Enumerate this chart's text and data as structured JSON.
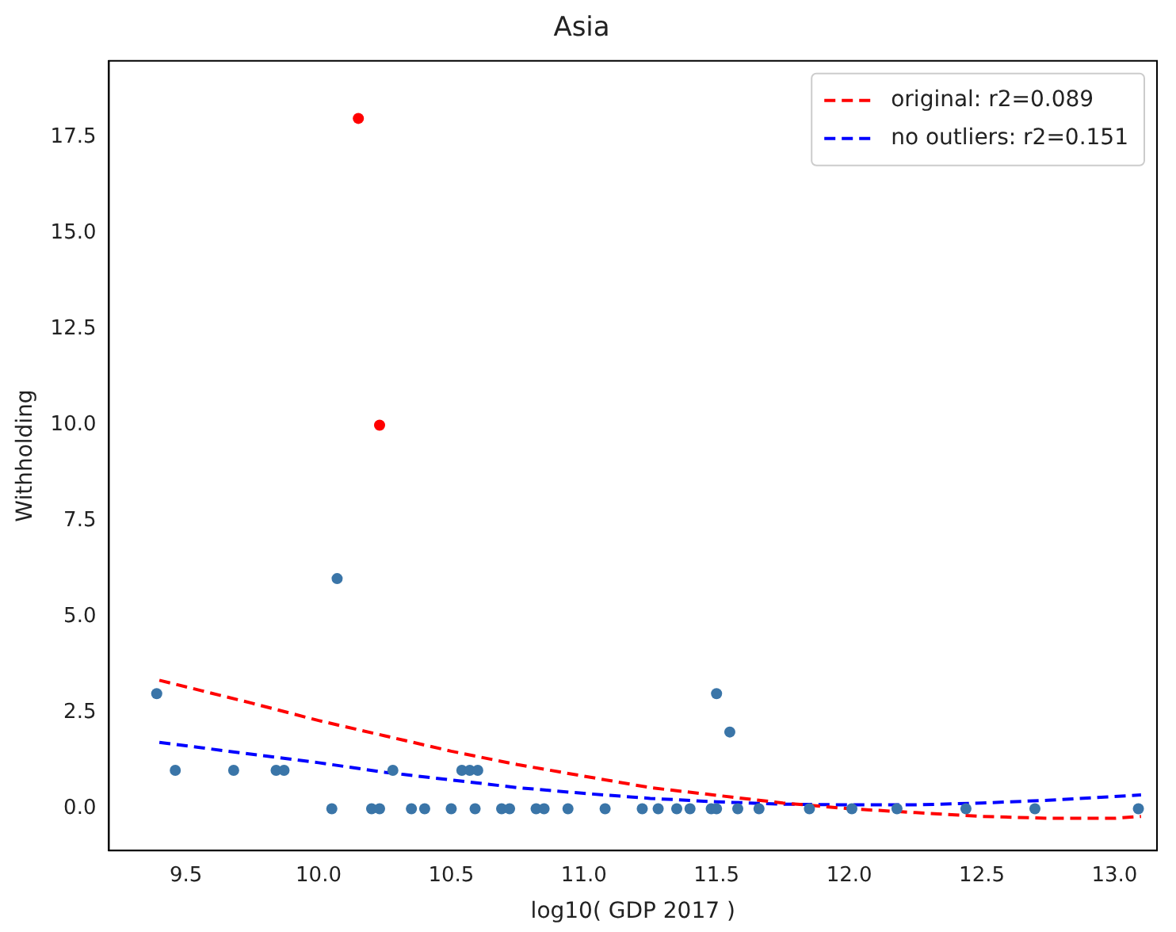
{
  "chart_data": {
    "type": "scatter",
    "title": "Asia",
    "xlabel": "log10( GDP 2017 )",
    "ylabel": "Withholding",
    "xlim": [
      9.21,
      13.16
    ],
    "ylim": [
      -1.09,
      19.5
    ],
    "xticks": [
      {
        "value": 9.5,
        "label": "9.5"
      },
      {
        "value": 10,
        "label": "10.0"
      },
      {
        "value": 10.5,
        "label": "10.5"
      },
      {
        "value": 11,
        "label": "11.0"
      },
      {
        "value": 11.5,
        "label": "11.5"
      },
      {
        "value": 12,
        "label": "12.0"
      },
      {
        "value": 12.5,
        "label": "12.5"
      },
      {
        "value": 13,
        "label": "13.0"
      }
    ],
    "yticks": [
      {
        "value": 0,
        "label": "0.0"
      },
      {
        "value": 2.5,
        "label": "2.5"
      },
      {
        "value": 5,
        "label": "5.0"
      },
      {
        "value": 7.5,
        "label": "7.5"
      },
      {
        "value": 10,
        "label": "10.0"
      },
      {
        "value": 12.5,
        "label": "12.5"
      },
      {
        "value": 15,
        "label": "15.0"
      },
      {
        "value": 17.5,
        "label": "17.5"
      }
    ],
    "grid": false,
    "legend": "top right",
    "series": [
      {
        "marker": "circle",
        "color": "#3a75a8",
        "x": [
          9.39,
          9.46,
          9.68,
          9.84,
          9.87,
          10.07,
          10.05,
          10.2,
          10.23,
          10.28,
          10.35,
          10.4,
          10.5,
          10.54,
          10.57,
          10.6,
          10.59,
          10.69,
          10.72,
          10.82,
          10.85,
          10.94,
          11.08,
          11.22,
          11.28,
          11.35,
          11.4,
          11.48,
          11.5,
          11.58,
          11.66,
          11.85,
          12.01,
          12.18,
          12.44,
          12.7,
          13.09,
          11.5,
          11.55
        ],
        "values": [
          3,
          1,
          1,
          1,
          1,
          6,
          0,
          0,
          0,
          1,
          0,
          0,
          0,
          1,
          1,
          1,
          0,
          0,
          0,
          0,
          0,
          0,
          0,
          0,
          0,
          0,
          0,
          0,
          0,
          0,
          0,
          0,
          0,
          0,
          0,
          0,
          0,
          3,
          2
        ]
      },
      {
        "marker": "circle",
        "color": "#ff0000",
        "x": [
          10.15,
          10.23
        ],
        "values": [
          18,
          10
        ]
      },
      {
        "type": "line",
        "name": "original: r2=0.089",
        "color": "#ff0000",
        "marker": "none",
        "line_style": "dashed",
        "x": [
          9.4,
          9.75,
          10,
          10.25,
          10.5,
          10.75,
          11,
          11.25,
          11.5,
          11.75,
          12,
          12.25,
          12.5,
          12.75,
          13,
          13.1
        ],
        "values": [
          3.35,
          2.75,
          2.3,
          1.9,
          1.5,
          1.15,
          0.85,
          0.55,
          0.35,
          0.15,
          0,
          -0.1,
          -0.2,
          -0.25,
          -0.25,
          -0.2
        ]
      },
      {
        "type": "line",
        "name": "no outliers: r2=0.151",
        "color": "#0000ff",
        "marker": "none",
        "line_style": "dashed",
        "x": [
          9.4,
          9.75,
          10,
          10.25,
          10.5,
          10.75,
          11,
          11.25,
          11.5,
          11.75,
          12,
          12.25,
          12.5,
          12.75,
          13,
          13.1
        ],
        "values": [
          1.73,
          1.42,
          1.2,
          0.95,
          0.75,
          0.55,
          0.4,
          0.27,
          0.18,
          0.12,
          0.1,
          0.1,
          0.15,
          0.22,
          0.32,
          0.36
        ]
      }
    ]
  }
}
